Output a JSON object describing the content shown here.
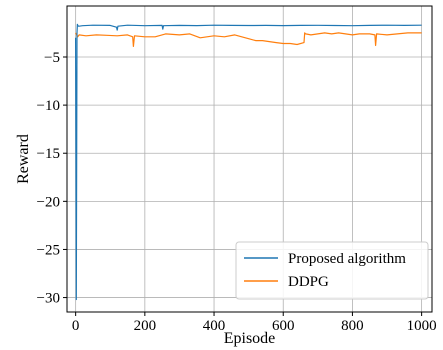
{
  "chart_data": {
    "type": "line",
    "title": "",
    "xlabel": "Episode",
    "ylabel": "Reward",
    "xlim": [
      -25,
      1030
    ],
    "ylim": [
      -31.5,
      0.3
    ],
    "xticks": [
      0,
      200,
      400,
      600,
      800,
      1000
    ],
    "yticks": [
      -5,
      -10,
      -15,
      -20,
      -25,
      -30
    ],
    "xtick_labels": [
      "0",
      "200",
      "400",
      "600",
      "800",
      "1000"
    ],
    "ytick_labels": [
      "−5",
      "−10",
      "−15",
      "−20",
      "−25",
      "−30"
    ],
    "grid": true,
    "legend_position": "lower-right",
    "series": [
      {
        "name": "Proposed algorithm",
        "color": "#1f77b4",
        "x": [
          0,
          2,
          4,
          5,
          6,
          8,
          10,
          20,
          50,
          100,
          118,
          120,
          122,
          150,
          200,
          250,
          252,
          254,
          300,
          350,
          400,
          450,
          500,
          550,
          600,
          650,
          700,
          750,
          800,
          850,
          900,
          950,
          1000
        ],
        "y": [
          -3.0,
          -30.2,
          -2.5,
          -1.6,
          -1.7,
          -1.8,
          -1.8,
          -1.75,
          -1.7,
          -1.72,
          -1.9,
          -2.2,
          -1.8,
          -1.7,
          -1.75,
          -1.72,
          -2.1,
          -1.75,
          -1.72,
          -1.74,
          -1.7,
          -1.72,
          -1.73,
          -1.72,
          -1.74,
          -1.72,
          -1.71,
          -1.73,
          -1.75,
          -1.72,
          -1.7,
          -1.72,
          -1.7
        ]
      },
      {
        "name": "DDPG",
        "color": "#ff7f0e",
        "x": [
          0,
          3,
          6,
          10,
          30,
          60,
          90,
          120,
          150,
          165,
          167,
          170,
          200,
          230,
          260,
          300,
          330,
          360,
          400,
          430,
          460,
          500,
          520,
          540,
          560,
          580,
          600,
          620,
          640,
          660,
          662,
          665,
          680,
          700,
          720,
          740,
          760,
          780,
          800,
          820,
          850,
          865,
          867,
          870,
          900,
          930,
          960,
          1000
        ],
        "y": [
          -2.5,
          -2.7,
          -2.9,
          -2.7,
          -2.8,
          -2.7,
          -2.75,
          -2.8,
          -2.7,
          -2.9,
          -3.9,
          -2.8,
          -2.9,
          -2.9,
          -2.6,
          -2.7,
          -2.6,
          -3.0,
          -2.8,
          -2.9,
          -2.7,
          -3.1,
          -3.3,
          -3.3,
          -3.4,
          -3.5,
          -3.6,
          -3.6,
          -3.7,
          -3.5,
          -2.5,
          -2.6,
          -2.7,
          -2.6,
          -2.5,
          -2.6,
          -2.5,
          -2.6,
          -2.7,
          -2.6,
          -2.6,
          -2.7,
          -3.8,
          -2.6,
          -2.7,
          -2.6,
          -2.5,
          -2.5
        ]
      }
    ]
  }
}
